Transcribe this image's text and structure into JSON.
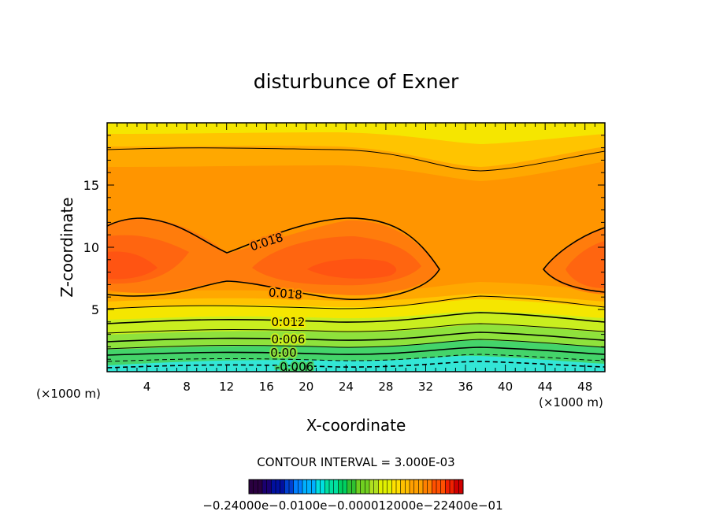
{
  "chart_data": {
    "type": "contour",
    "title": "disturbunce of Exner",
    "xlabel": "X-coordinate",
    "ylabel": "Z-coordinate",
    "xlim": [
      0,
      50
    ],
    "ylim": [
      0,
      20
    ],
    "x_ticks": [
      4,
      8,
      12,
      16,
      20,
      24,
      28,
      32,
      36,
      40,
      44,
      48
    ],
    "y_ticks": [
      5,
      10,
      15
    ],
    "x_unit_left": "(×1000 m)",
    "x_unit_right": "(×1000 m)",
    "contour_interval_text": "CONTOUR INTERVAL = 3.000E-03",
    "contour_labels": [
      "0.018",
      "0.018",
      "0.012",
      "0.006",
      "0.00",
      "-0.006"
    ],
    "colorbar": {
      "min": -0.024,
      "max": 0.024,
      "labels_text": "−0.24000e−0.0100e−0.000012000e−22400e−01",
      "colors": [
        "#2a0040",
        "#1a0070",
        "#0010a0",
        "#0040d0",
        "#0080ff",
        "#00b0ff",
        "#00e0e0",
        "#00e0a0",
        "#00d060",
        "#30c030",
        "#70d020",
        "#b0e020",
        "#e0f000",
        "#ffe000",
        "#ffc000",
        "#ffa000",
        "#ff8000",
        "#ff5000",
        "#f02000",
        "#d00000"
      ]
    },
    "field_colors": {
      "deep_cyan": "#33e6d6",
      "green": "#44d46a",
      "light_green": "#8fe23c",
      "yellow_green": "#c9ee1f",
      "yellow": "#f5e600",
      "gold": "#ffc400",
      "orange_light": "#ffa800",
      "orange": "#ff9500",
      "orange_dark": "#ff7c0c",
      "red_orange": "#ff6510",
      "red": "#ff5412"
    }
  }
}
